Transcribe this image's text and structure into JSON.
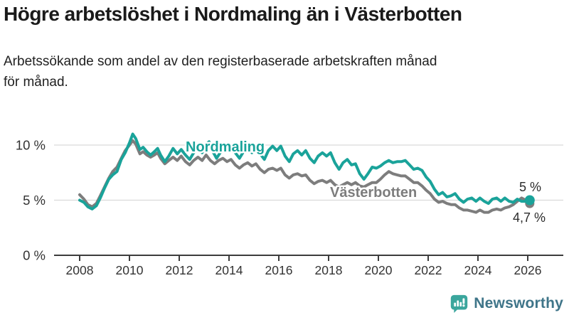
{
  "header": {
    "title": "Högre arbetslöshet i Nordmaling än i Västerbotten",
    "subtitle": "Arbetssökande som andel av den registerbaserade arbetskraften månad för månad.",
    "subtitle_lines": [
      "Arbetssökande som andel av den registerbaserade arbetskraften månad",
      "för månad."
    ],
    "title_color": "#1a1a1a"
  },
  "chart_data": {
    "type": "line",
    "xlabel": "",
    "ylabel": "",
    "x_range": [
      2008,
      2026.4
    ],
    "ylim": [
      0,
      12
    ],
    "grid": "horizontal",
    "legend_position": "inline-labels",
    "axis_color": "#3c3c3c",
    "grid_color": "#dadada",
    "tick_label_color": "#333333",
    "end_label_color": "#2b2b2b",
    "x_ticks": [
      2008,
      2010,
      2012,
      2014,
      2016,
      2018,
      2020,
      2022,
      2024,
      2026
    ],
    "y_ticks": [
      {
        "value": 0,
        "label": "0 %"
      },
      {
        "value": 5,
        "label": "5 %"
      },
      {
        "value": 10,
        "label": "10 %"
      }
    ],
    "series": [
      {
        "name": "Nordmaling",
        "color": "#1aa39a",
        "end_label": "5 %",
        "end_value": 5.0,
        "points": [
          [
            2008.0,
            5.0
          ],
          [
            2008.17,
            4.8
          ],
          [
            2008.33,
            4.4
          ],
          [
            2008.5,
            4.2
          ],
          [
            2008.67,
            4.5
          ],
          [
            2008.83,
            5.2
          ],
          [
            2009.0,
            6.1
          ],
          [
            2009.17,
            6.9
          ],
          [
            2009.33,
            7.3
          ],
          [
            2009.5,
            7.6
          ],
          [
            2009.67,
            8.7
          ],
          [
            2009.83,
            9.3
          ],
          [
            2010.0,
            10.2
          ],
          [
            2010.13,
            11.0
          ],
          [
            2010.25,
            10.6
          ],
          [
            2010.42,
            9.6
          ],
          [
            2010.55,
            9.8
          ],
          [
            2010.7,
            9.4
          ],
          [
            2010.85,
            9.1
          ],
          [
            2011.0,
            9.4
          ],
          [
            2011.13,
            9.7
          ],
          [
            2011.25,
            9.1
          ],
          [
            2011.42,
            8.5
          ],
          [
            2011.58,
            9.0
          ],
          [
            2011.75,
            9.7
          ],
          [
            2011.92,
            9.2
          ],
          [
            2012.08,
            9.6
          ],
          [
            2012.25,
            9.1
          ],
          [
            2012.42,
            8.7
          ],
          [
            2012.58,
            9.3
          ],
          [
            2012.75,
            9.7
          ],
          [
            2012.92,
            9.3
          ],
          [
            2013.08,
            10.1
          ],
          [
            2013.2,
            10.3
          ],
          [
            2013.33,
            9.5
          ],
          [
            2013.5,
            8.8
          ],
          [
            2013.67,
            9.4
          ],
          [
            2013.83,
            9.8
          ],
          [
            2013.95,
            9.5
          ],
          [
            2014.08,
            9.9
          ],
          [
            2014.25,
            9.3
          ],
          [
            2014.42,
            8.8
          ],
          [
            2014.58,
            9.4
          ],
          [
            2014.75,
            9.7
          ],
          [
            2014.92,
            9.3
          ],
          [
            2015.08,
            10.0
          ],
          [
            2015.25,
            9.2
          ],
          [
            2015.42,
            8.7
          ],
          [
            2015.58,
            9.5
          ],
          [
            2015.75,
            9.9
          ],
          [
            2015.92,
            9.5
          ],
          [
            2016.08,
            9.9
          ],
          [
            2016.25,
            9.0
          ],
          [
            2016.42,
            8.5
          ],
          [
            2016.58,
            9.2
          ],
          [
            2016.75,
            9.5
          ],
          [
            2016.92,
            9.1
          ],
          [
            2017.08,
            9.5
          ],
          [
            2017.25,
            8.8
          ],
          [
            2017.42,
            8.4
          ],
          [
            2017.58,
            9.0
          ],
          [
            2017.75,
            9.3
          ],
          [
            2017.92,
            9.0
          ],
          [
            2018.08,
            9.3
          ],
          [
            2018.25,
            8.4
          ],
          [
            2018.42,
            7.8
          ],
          [
            2018.58,
            8.4
          ],
          [
            2018.75,
            8.7
          ],
          [
            2018.92,
            8.2
          ],
          [
            2019.08,
            8.3
          ],
          [
            2019.25,
            7.4
          ],
          [
            2019.42,
            6.9
          ],
          [
            2019.58,
            7.4
          ],
          [
            2019.75,
            8.0
          ],
          [
            2019.92,
            7.9
          ],
          [
            2020.08,
            8.1
          ],
          [
            2020.25,
            8.4
          ],
          [
            2020.42,
            8.6
          ],
          [
            2020.58,
            8.4
          ],
          [
            2020.75,
            8.5
          ],
          [
            2020.92,
            8.5
          ],
          [
            2021.08,
            8.6
          ],
          [
            2021.25,
            8.2
          ],
          [
            2021.42,
            7.8
          ],
          [
            2021.58,
            7.9
          ],
          [
            2021.75,
            7.7
          ],
          [
            2021.92,
            7.1
          ],
          [
            2022.08,
            6.7
          ],
          [
            2022.25,
            6.0
          ],
          [
            2022.42,
            5.5
          ],
          [
            2022.58,
            5.7
          ],
          [
            2022.75,
            5.3
          ],
          [
            2022.92,
            5.4
          ],
          [
            2023.08,
            5.6
          ],
          [
            2023.25,
            5.1
          ],
          [
            2023.42,
            4.8
          ],
          [
            2023.58,
            5.1
          ],
          [
            2023.75,
            5.2
          ],
          [
            2023.92,
            4.9
          ],
          [
            2024.08,
            5.2
          ],
          [
            2024.25,
            4.9
          ],
          [
            2024.42,
            4.7
          ],
          [
            2024.58,
            5.1
          ],
          [
            2024.75,
            5.2
          ],
          [
            2024.92,
            4.9
          ],
          [
            2025.08,
            5.2
          ],
          [
            2025.25,
            4.9
          ],
          [
            2025.42,
            4.8
          ],
          [
            2025.58,
            5.1
          ],
          [
            2025.75,
            4.9
          ],
          [
            2025.92,
            4.9
          ],
          [
            2026.08,
            5.0
          ]
        ]
      },
      {
        "name": "Västerbotten",
        "color": "#7d7d7d",
        "end_label": "4,7 %",
        "end_value": 4.7,
        "points": [
          [
            2008.0,
            5.5
          ],
          [
            2008.17,
            5.1
          ],
          [
            2008.33,
            4.6
          ],
          [
            2008.5,
            4.4
          ],
          [
            2008.67,
            4.7
          ],
          [
            2008.83,
            5.4
          ],
          [
            2009.0,
            6.2
          ],
          [
            2009.17,
            7.0
          ],
          [
            2009.33,
            7.6
          ],
          [
            2009.5,
            8.0
          ],
          [
            2009.67,
            8.8
          ],
          [
            2009.83,
            9.5
          ],
          [
            2010.0,
            10.0
          ],
          [
            2010.13,
            10.4
          ],
          [
            2010.25,
            10.1
          ],
          [
            2010.42,
            9.2
          ],
          [
            2010.55,
            9.4
          ],
          [
            2010.7,
            9.1
          ],
          [
            2010.85,
            8.9
          ],
          [
            2011.0,
            9.1
          ],
          [
            2011.13,
            9.3
          ],
          [
            2011.25,
            8.8
          ],
          [
            2011.42,
            8.3
          ],
          [
            2011.58,
            8.6
          ],
          [
            2011.75,
            8.9
          ],
          [
            2011.92,
            8.6
          ],
          [
            2012.08,
            9.0
          ],
          [
            2012.25,
            8.5
          ],
          [
            2012.42,
            8.2
          ],
          [
            2012.58,
            8.6
          ],
          [
            2012.75,
            8.9
          ],
          [
            2012.92,
            8.6
          ],
          [
            2013.08,
            9.1
          ],
          [
            2013.25,
            8.6
          ],
          [
            2013.42,
            8.3
          ],
          [
            2013.58,
            8.6
          ],
          [
            2013.75,
            8.8
          ],
          [
            2013.92,
            8.5
          ],
          [
            2014.08,
            8.7
          ],
          [
            2014.25,
            8.2
          ],
          [
            2014.42,
            7.9
          ],
          [
            2014.58,
            8.2
          ],
          [
            2014.75,
            8.4
          ],
          [
            2014.92,
            8.1
          ],
          [
            2015.08,
            8.3
          ],
          [
            2015.25,
            7.8
          ],
          [
            2015.42,
            7.5
          ],
          [
            2015.58,
            7.8
          ],
          [
            2015.75,
            7.9
          ],
          [
            2015.92,
            7.7
          ],
          [
            2016.08,
            7.9
          ],
          [
            2016.25,
            7.3
          ],
          [
            2016.42,
            7.0
          ],
          [
            2016.58,
            7.3
          ],
          [
            2016.75,
            7.4
          ],
          [
            2016.92,
            7.2
          ],
          [
            2017.08,
            7.3
          ],
          [
            2017.25,
            6.8
          ],
          [
            2017.42,
            6.5
          ],
          [
            2017.58,
            6.7
          ],
          [
            2017.75,
            6.8
          ],
          [
            2017.92,
            6.6
          ],
          [
            2018.08,
            6.8
          ],
          [
            2018.25,
            6.4
          ],
          [
            2018.42,
            6.2
          ],
          [
            2018.58,
            6.4
          ],
          [
            2018.75,
            6.6
          ],
          [
            2018.92,
            6.4
          ],
          [
            2019.08,
            6.6
          ],
          [
            2019.25,
            6.3
          ],
          [
            2019.42,
            6.2
          ],
          [
            2019.58,
            6.4
          ],
          [
            2019.75,
            6.6
          ],
          [
            2019.92,
            6.6
          ],
          [
            2020.08,
            6.9
          ],
          [
            2020.25,
            7.3
          ],
          [
            2020.42,
            7.6
          ],
          [
            2020.58,
            7.4
          ],
          [
            2020.75,
            7.3
          ],
          [
            2020.92,
            7.2
          ],
          [
            2021.08,
            7.2
          ],
          [
            2021.25,
            6.9
          ],
          [
            2021.42,
            6.6
          ],
          [
            2021.58,
            6.6
          ],
          [
            2021.75,
            6.3
          ],
          [
            2021.92,
            5.9
          ],
          [
            2022.08,
            5.6
          ],
          [
            2022.25,
            5.1
          ],
          [
            2022.42,
            4.8
          ],
          [
            2022.58,
            4.9
          ],
          [
            2022.75,
            4.7
          ],
          [
            2022.92,
            4.6
          ],
          [
            2023.08,
            4.6
          ],
          [
            2023.25,
            4.3
          ],
          [
            2023.42,
            4.1
          ],
          [
            2023.58,
            4.1
          ],
          [
            2023.75,
            4.0
          ],
          [
            2023.92,
            3.9
          ],
          [
            2024.08,
            4.1
          ],
          [
            2024.25,
            3.9
          ],
          [
            2024.42,
            3.9
          ],
          [
            2024.58,
            4.1
          ],
          [
            2024.75,
            4.2
          ],
          [
            2024.92,
            4.1
          ],
          [
            2025.08,
            4.3
          ],
          [
            2025.25,
            4.4
          ],
          [
            2025.42,
            4.6
          ],
          [
            2025.58,
            4.9
          ],
          [
            2025.75,
            5.2
          ],
          [
            2025.92,
            5.0
          ],
          [
            2026.08,
            4.7
          ]
        ]
      }
    ]
  },
  "footer": {
    "brand": "Newsworthy",
    "icon_color": "#3ba69d",
    "text_color": "#3f7589"
  }
}
